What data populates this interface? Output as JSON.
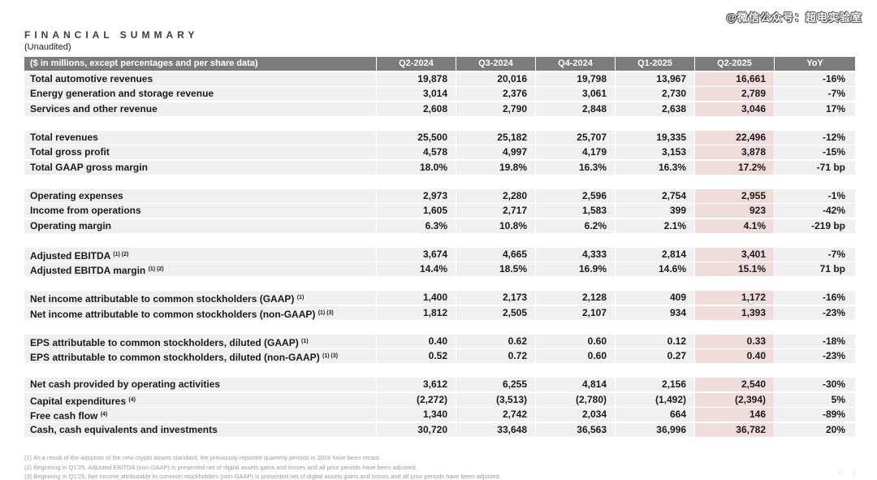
{
  "watermark": "@微信公众号：超电实验室",
  "page": {
    "title": "FINANCIAL SUMMARY",
    "subtitle": "(Unaudited)"
  },
  "nav": {
    "prev": "‹",
    "next": "›"
  },
  "colors": {
    "header_bg": "#7c7c7c",
    "row_bg": "#f1f0ef",
    "highlight_bg": "#f0dcda",
    "header_text": "#ffffff",
    "body_text": "#1a1a1a",
    "footnote_text": "#9b9b9b"
  },
  "chart_data": {
    "type": "table",
    "title": "FINANCIAL SUMMARY",
    "subtitle": "(Unaudited)",
    "unit_note": "($ in millions, except percentages and per share data)",
    "columns": [
      "Q2-2024",
      "Q3-2024",
      "Q4-2024",
      "Q1-2025",
      "Q2-2025",
      "YoY"
    ],
    "highlight_column": "Q2-2025",
    "highlight_column_index": 4,
    "groups": [
      {
        "rows": [
          {
            "label": "Total automotive revenues",
            "sup": "",
            "values": [
              "19,878",
              "20,016",
              "19,798",
              "13,967",
              "16,661",
              "-16%"
            ]
          },
          {
            "label": "Energy generation and storage revenue",
            "sup": "",
            "values": [
              "3,014",
              "2,376",
              "3,061",
              "2,730",
              "2,789",
              "-7%"
            ]
          },
          {
            "label": "Services and other revenue",
            "sup": "",
            "values": [
              "2,608",
              "2,790",
              "2,848",
              "2,638",
              "3,046",
              "17%"
            ]
          }
        ]
      },
      {
        "rows": [
          {
            "label": "Total revenues",
            "sup": "",
            "values": [
              "25,500",
              "25,182",
              "25,707",
              "19,335",
              "22,496",
              "-12%"
            ]
          },
          {
            "label": "Total gross profit",
            "sup": "",
            "values": [
              "4,578",
              "4,997",
              "4,179",
              "3,153",
              "3,878",
              "-15%"
            ]
          },
          {
            "label": "Total GAAP gross margin",
            "sup": "",
            "values": [
              "18.0%",
              "19.8%",
              "16.3%",
              "16.3%",
              "17.2%",
              "-71 bp"
            ]
          }
        ]
      },
      {
        "rows": [
          {
            "label": "Operating expenses",
            "sup": "",
            "values": [
              "2,973",
              "2,280",
              "2,596",
              "2,754",
              "2,955",
              "-1%"
            ]
          },
          {
            "label": "Income from operations",
            "sup": "",
            "values": [
              "1,605",
              "2,717",
              "1,583",
              "399",
              "923",
              "-42%"
            ]
          },
          {
            "label": "Operating margin",
            "sup": "",
            "values": [
              "6.3%",
              "10.8%",
              "6.2%",
              "2.1%",
              "4.1%",
              "-219 bp"
            ]
          }
        ]
      },
      {
        "rows": [
          {
            "label": "Adjusted EBITDA ",
            "sup": "(1) (2)",
            "values": [
              "3,674",
              "4,665",
              "4,333",
              "2,814",
              "3,401",
              "-7%"
            ]
          },
          {
            "label": "Adjusted EBITDA margin ",
            "sup": "(1) (2)",
            "values": [
              "14.4%",
              "18.5%",
              "16.9%",
              "14.6%",
              "15.1%",
              "71 bp"
            ]
          }
        ]
      },
      {
        "rows": [
          {
            "label": "Net income attributable to common stockholders (GAAP) ",
            "sup": "(1)",
            "values": [
              "1,400",
              "2,173",
              "2,128",
              "409",
              "1,172",
              "-16%"
            ]
          },
          {
            "label": "Net income attributable to common stockholders (non-GAAP) ",
            "sup": "(1) (3)",
            "values": [
              "1,812",
              "2,505",
              "2,107",
              "934",
              "1,393",
              "-23%"
            ]
          }
        ]
      },
      {
        "rows": [
          {
            "label": "EPS attributable to common stockholders, diluted (GAAP) ",
            "sup": "(1)",
            "values": [
              "0.40",
              "0.62",
              "0.60",
              "0.12",
              "0.33",
              "-18%"
            ]
          },
          {
            "label": "EPS attributable to common stockholders, diluted (non-GAAP) ",
            "sup": "(1) (3)",
            "values": [
              "0.52",
              "0.72",
              "0.60",
              "0.27",
              "0.40",
              "-23%"
            ]
          }
        ]
      },
      {
        "rows": [
          {
            "label": "Net cash provided by operating activities",
            "sup": "",
            "values": [
              "3,612",
              "6,255",
              "4,814",
              "2,156",
              "2,540",
              "-30%"
            ]
          },
          {
            "label": "Capital expenditures ",
            "sup": "(4)",
            "values": [
              "(2,272)",
              "(3,513)",
              "(2,780)",
              "(1,492)",
              "(2,394)",
              "5%"
            ]
          },
          {
            "label": "Free cash flow ",
            "sup": "(4)",
            "values": [
              "1,340",
              "2,742",
              "2,034",
              "664",
              "146",
              "-89%"
            ]
          },
          {
            "label": "Cash, cash equivalents and investments",
            "sup": "",
            "values": [
              "30,720",
              "33,648",
              "36,563",
              "36,996",
              "36,782",
              "20%"
            ]
          }
        ]
      }
    ],
    "footnotes": [
      "(1) As a result of the adoption of the new crypto assets standard, the previously reported quarterly periods in 2024 have been recast.",
      "(2) Beginning in Q1'25, Adjusted EBITDA (non-GAAP) is presented net of digital assets gains and losses and all prior periods have been adjusted.",
      "(3) Beginning in Q1'25, Net income attributable to common stockholders (non-GAAP) is presented net of digital assets gains and losses and all prior periods have been adjusted."
    ]
  }
}
